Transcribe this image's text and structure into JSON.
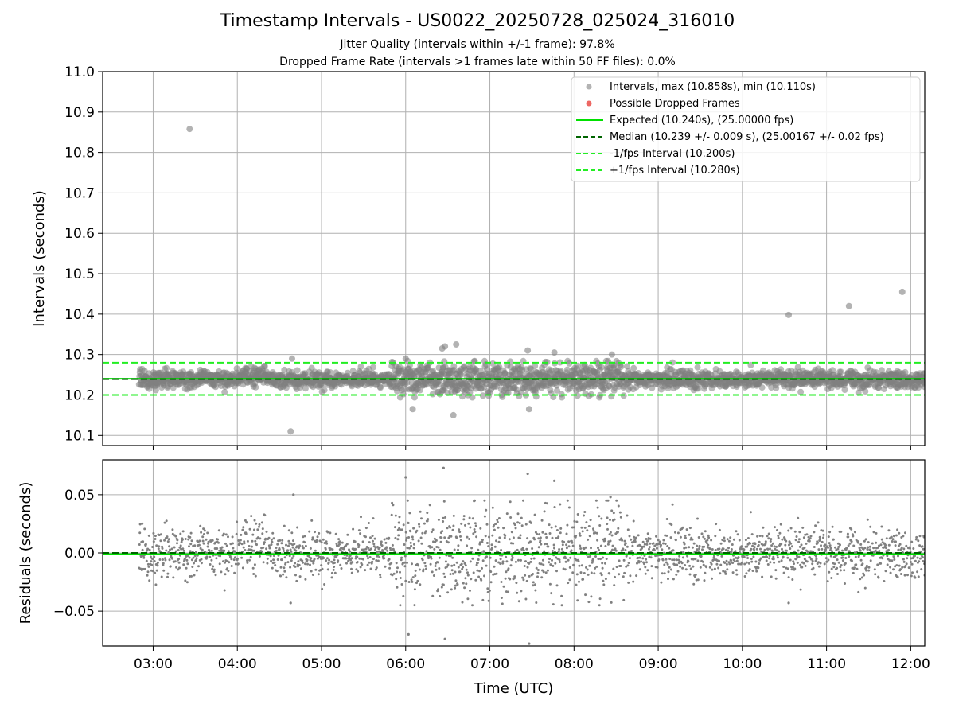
{
  "title": "Timestamp Intervals - US0022_20250728_025024_316010",
  "subtitle_jitter": "Jitter Quality (intervals within +/-1 frame): 97.8%",
  "subtitle_dropped": "Dropped Frame Rate (intervals >1 frames late within 50 FF files): 0.0%",
  "colors": {
    "points": "#808080",
    "dropped": "#e8413c",
    "expected": "#00e000",
    "median": "#006400",
    "interval_bounds": "#22ee22",
    "grid": "#b0b0b0"
  },
  "chart_data": [
    {
      "type": "scatter",
      "ylabel": "Intervals (seconds)",
      "x_range": [
        "02:24",
        "12:10"
      ],
      "ylim": [
        10.075,
        11.0
      ],
      "y_ticks": [
        "10.1",
        "10.2",
        "10.3",
        "10.4",
        "10.5",
        "10.6",
        "10.7",
        "10.8",
        "10.9",
        "11.0"
      ],
      "grid": true,
      "legend_placement": "top-right",
      "legend": [
        {
          "label": "Intervals, max (10.858s), min (10.110s)",
          "marker": "dot-gray"
        },
        {
          "label": "Possible Dropped Frames",
          "marker": "dot-red"
        },
        {
          "label": "Expected (10.240s), (25.00000 fps)",
          "marker": "line-solid-lime"
        },
        {
          "label": "Median (10.239 +/- 0.009 s), (25.00167 +/- 0.02 fps)",
          "marker": "line-dashed-darkgreen"
        },
        {
          "label": "-1/fps Interval (10.200s)",
          "marker": "line-dashed-lime"
        },
        {
          "label": "+1/fps Interval (10.280s)",
          "marker": "line-dashed-lime"
        }
      ],
      "reference_lines": {
        "expected": 10.24,
        "median": 10.239,
        "lower": 10.2,
        "upper": 10.28
      },
      "time_start": "02:50",
      "time_end": "12:10",
      "outliers": [
        {
          "t": "03:26",
          "y": 10.858
        },
        {
          "t": "04:38",
          "y": 10.11
        },
        {
          "t": "04:39",
          "y": 10.29
        },
        {
          "t": "06:00",
          "y": 10.29
        },
        {
          "t": "06:05",
          "y": 10.165
        },
        {
          "t": "06:26",
          "y": 10.315
        },
        {
          "t": "06:28",
          "y": 10.32
        },
        {
          "t": "06:34",
          "y": 10.15
        },
        {
          "t": "06:36",
          "y": 10.325
        },
        {
          "t": "07:27",
          "y": 10.31
        },
        {
          "t": "07:28",
          "y": 10.165
        },
        {
          "t": "07:46",
          "y": 10.305
        },
        {
          "t": "08:27",
          "y": 10.3
        },
        {
          "t": "10:33",
          "y": 10.398
        },
        {
          "t": "11:16",
          "y": 10.42
        },
        {
          "t": "11:54",
          "y": 10.455
        }
      ],
      "noise_note_levels": [
        {
          "from": "02:50",
          "to": "05:50",
          "sd": 0.011
        },
        {
          "from": "05:50",
          "to": "08:40",
          "sd": 0.02
        },
        {
          "from": "08:40",
          "to": "12:10",
          "sd": 0.011
        }
      ]
    },
    {
      "type": "scatter",
      "ylabel": "Residuals (seconds)",
      "xlabel": "Time (UTC)",
      "ylim": [
        -0.08,
        0.08
      ],
      "y_ticks": [
        {
          "v": 0.05,
          "label": "0.05"
        },
        {
          "v": 0.0,
          "label": "0.00"
        },
        {
          "v": -0.05,
          "label": "−0.05"
        }
      ],
      "x_ticks": [
        "03:00",
        "04:00",
        "05:00",
        "06:00",
        "07:00",
        "08:00",
        "09:00",
        "10:00",
        "11:00",
        "12:00"
      ],
      "grid": true,
      "reference_lines": {
        "median_zero": 0.0,
        "expected_offset": -0.001
      },
      "outliers": [
        {
          "t": "04:38",
          "y": -0.043
        },
        {
          "t": "04:40",
          "y": 0.05
        },
        {
          "t": "06:00",
          "y": 0.065
        },
        {
          "t": "06:02",
          "y": -0.07
        },
        {
          "t": "06:27",
          "y": 0.073
        },
        {
          "t": "06:28",
          "y": -0.074
        },
        {
          "t": "07:27",
          "y": 0.068
        },
        {
          "t": "07:28",
          "y": -0.078
        },
        {
          "t": "07:46",
          "y": 0.062
        },
        {
          "t": "08:26",
          "y": 0.048
        },
        {
          "t": "10:33",
          "y": -0.043
        }
      ]
    }
  ]
}
